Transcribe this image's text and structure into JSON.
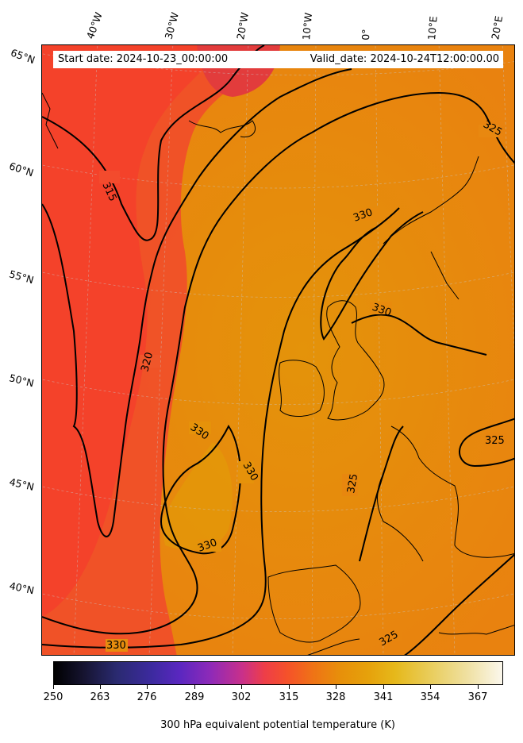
{
  "header": {
    "start_date": "Start date: 2024-10-23_00:00:00",
    "valid_date": "Valid_date: 2024-10-24T12:00:00.00"
  },
  "longitude_labels": [
    "40°W",
    "30°W",
    "20°W",
    "10°W",
    "0°",
    "10°E",
    "20°E"
  ],
  "latitude_labels": [
    "65°N",
    "60°N",
    "55°N",
    "50°N",
    "45°N",
    "40°N"
  ],
  "contour_labels": [
    "315",
    "320",
    "325",
    "325",
    "325",
    "325",
    "330",
    "330",
    "330",
    "330",
    "330",
    "330"
  ],
  "colorbar": {
    "ticks": [
      "250",
      "263",
      "276",
      "289",
      "302",
      "315",
      "328",
      "341",
      "354",
      "367"
    ],
    "label": "300 hPa equivalent potential temperature (K)",
    "colormap": "CMRmap"
  },
  "colors": {
    "warm_field": "#e58a0c",
    "cool_field": "#f04a2c",
    "coldest_patch": "#e03c3c",
    "contour": "#000000"
  }
}
